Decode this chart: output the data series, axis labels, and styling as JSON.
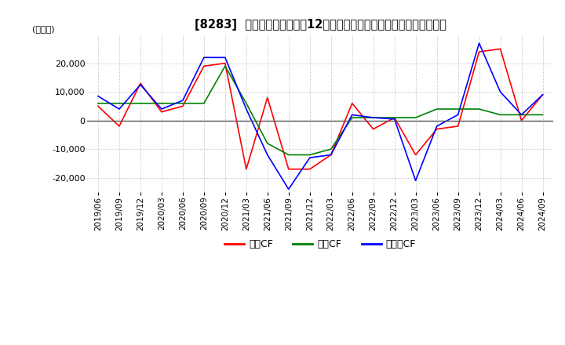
{
  "title": "[8283]  キャッシュフローの12か月移動合計の対前年同期増減額の推移",
  "ylabel": "(百万円)",
  "ylim": [
    -25000,
    30000
  ],
  "yticks": [
    -20000,
    -10000,
    0,
    10000,
    20000
  ],
  "legend_labels": [
    "営業CF",
    "投資CF",
    "フリーCF"
  ],
  "line_colors": [
    "#ff0000",
    "#008000",
    "#0000ff"
  ],
  "dates": [
    "2019/06",
    "2019/09",
    "2019/12",
    "2020/03",
    "2020/06",
    "2020/09",
    "2020/12",
    "2021/03",
    "2021/06",
    "2021/09",
    "2021/12",
    "2022/03",
    "2022/06",
    "2022/09",
    "2022/12",
    "2023/03",
    "2023/06",
    "2023/09",
    "2023/12",
    "2024/03",
    "2024/06",
    "2024/09"
  ],
  "eigyo_cf": [
    5000,
    -2000,
    13000,
    3000,
    5000,
    19000,
    20000,
    -17000,
    8000,
    -17000,
    -17000,
    -12000,
    6000,
    -3000,
    1000,
    -12000,
    -3000,
    -2000,
    24000,
    25000,
    0,
    9000
  ],
  "toshi_cf": [
    6000,
    6000,
    6000,
    6000,
    6000,
    6000,
    19000,
    6000,
    -8000,
    -12000,
    -12000,
    -10000,
    1000,
    1000,
    1000,
    1000,
    4000,
    4000,
    4000,
    2000,
    2000,
    2000
  ],
  "free_cf": [
    8500,
    4000,
    12500,
    4000,
    7000,
    22000,
    22000,
    4000,
    -12000,
    -24000,
    -13000,
    -12000,
    2000,
    1000,
    500,
    -21000,
    -2000,
    2000,
    27000,
    10000,
    2000,
    9000
  ],
  "background_color": "#ffffff",
  "grid_color": "#aaaaaa",
  "grid_style": "dotted"
}
